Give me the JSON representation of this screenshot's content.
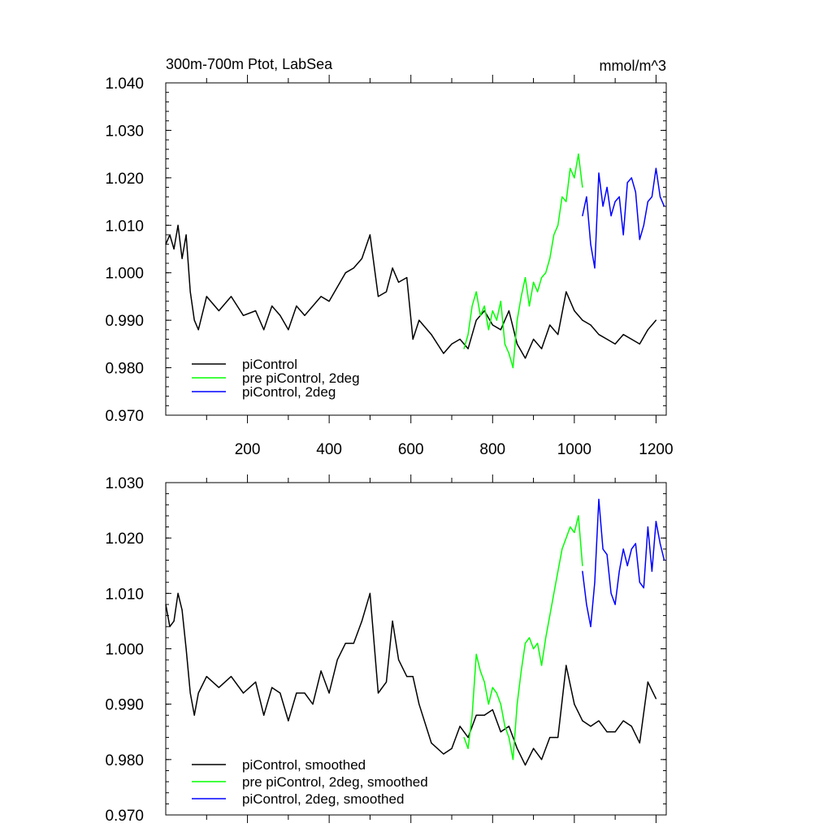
{
  "chart_data": [
    {
      "type": "line",
      "title": "300m-700m Ptot, LabSea",
      "units": "mmol/m^3",
      "xlabel": "",
      "ylabel": "",
      "xlim": [
        0,
        1225
      ],
      "ylim": [
        0.97,
        1.04
      ],
      "xticks": [
        "200",
        "400",
        "600",
        "800",
        "1000",
        "1200"
      ],
      "yticks": [
        "0.970",
        "0.980",
        "0.990",
        "1.000",
        "1.010",
        "1.020",
        "1.030",
        "1.040"
      ],
      "legend_position": "bottom-left",
      "series": [
        {
          "name": "piControl",
          "color": "#000000",
          "x": [
            0,
            10,
            20,
            30,
            40,
            50,
            60,
            70,
            80,
            100,
            130,
            160,
            190,
            220,
            240,
            260,
            280,
            300,
            320,
            340,
            360,
            380,
            400,
            420,
            440,
            460,
            480,
            500,
            520,
            540,
            555,
            570,
            590,
            605,
            620,
            650,
            680,
            700,
            720,
            740,
            760,
            780,
            800,
            820,
            840,
            860,
            880,
            900,
            920,
            940,
            960,
            980,
            1000,
            1020,
            1040,
            1060,
            1080,
            1100,
            1120,
            1140,
            1160,
            1180,
            1200
          ],
          "y": [
            1.006,
            1.008,
            1.005,
            1.01,
            1.003,
            1.008,
            0.996,
            0.99,
            0.988,
            0.995,
            0.992,
            0.995,
            0.991,
            0.992,
            0.988,
            0.993,
            0.991,
            0.988,
            0.993,
            0.991,
            0.993,
            0.995,
            0.994,
            0.997,
            1.0,
            1.001,
            1.003,
            1.008,
            0.995,
            0.996,
            1.001,
            0.998,
            0.999,
            0.986,
            0.99,
            0.987,
            0.983,
            0.985,
            0.986,
            0.984,
            0.99,
            0.992,
            0.989,
            0.988,
            0.992,
            0.985,
            0.982,
            0.986,
            0.984,
            0.989,
            0.987,
            0.996,
            0.992,
            0.99,
            0.989,
            0.987,
            0.986,
            0.985,
            0.987,
            0.986,
            0.985,
            0.988,
            0.99
          ]
        },
        {
          "name": "pre piControl, 2deg",
          "color": "#00ff00",
          "x": [
            730,
            740,
            750,
            760,
            770,
            780,
            790,
            800,
            810,
            820,
            830,
            840,
            850,
            860,
            870,
            880,
            890,
            900,
            910,
            920,
            930,
            940,
            950,
            960,
            970,
            980,
            990,
            1000,
            1010,
            1020
          ],
          "y": [
            0.984,
            0.987,
            0.993,
            0.996,
            0.991,
            0.993,
            0.988,
            0.992,
            0.99,
            0.994,
            0.985,
            0.983,
            0.98,
            0.99,
            0.995,
            0.999,
            0.993,
            0.998,
            0.996,
            0.999,
            1.0,
            1.003,
            1.008,
            1.01,
            1.016,
            1.015,
            1.022,
            1.02,
            1.025,
            1.018
          ]
        },
        {
          "name": "piControl, 2deg",
          "color": "#0000ff",
          "x": [
            1020,
            1030,
            1040,
            1050,
            1060,
            1070,
            1080,
            1090,
            1100,
            1110,
            1120,
            1130,
            1140,
            1150,
            1160,
            1170,
            1180,
            1190,
            1200,
            1210,
            1220
          ],
          "y": [
            1.012,
            1.016,
            1.006,
            1.001,
            1.021,
            1.014,
            1.018,
            1.012,
            1.015,
            1.016,
            1.008,
            1.019,
            1.02,
            1.017,
            1.007,
            1.01,
            1.015,
            1.016,
            1.022,
            1.016,
            1.014
          ]
        }
      ]
    },
    {
      "type": "line",
      "title": "",
      "xlabel": "",
      "ylabel": "",
      "xlim": [
        0,
        1225
      ],
      "ylim": [
        0.97,
        1.03
      ],
      "xticks": [],
      "yticks": [
        "0.970",
        "0.980",
        "0.990",
        "1.000",
        "1.010",
        "1.020",
        "1.030"
      ],
      "legend_position": "bottom-left",
      "series": [
        {
          "name": "piControl, smoothed",
          "color": "#000000",
          "x": [
            0,
            10,
            20,
            30,
            40,
            50,
            60,
            70,
            80,
            100,
            130,
            160,
            190,
            220,
            240,
            260,
            280,
            300,
            320,
            340,
            360,
            380,
            400,
            420,
            440,
            460,
            480,
            500,
            520,
            540,
            555,
            570,
            590,
            605,
            620,
            650,
            680,
            700,
            720,
            740,
            760,
            780,
            800,
            820,
            840,
            860,
            880,
            900,
            920,
            940,
            960,
            980,
            1000,
            1020,
            1040,
            1060,
            1080,
            1100,
            1120,
            1140,
            1160,
            1180,
            1200
          ],
          "y": [
            1.008,
            1.004,
            1.005,
            1.01,
            1.007,
            1.0,
            0.992,
            0.988,
            0.992,
            0.995,
            0.993,
            0.995,
            0.992,
            0.994,
            0.988,
            0.993,
            0.992,
            0.987,
            0.992,
            0.992,
            0.99,
            0.996,
            0.992,
            0.998,
            1.001,
            1.001,
            1.005,
            1.01,
            0.992,
            0.994,
            1.005,
            0.998,
            0.995,
            0.995,
            0.99,
            0.983,
            0.981,
            0.982,
            0.986,
            0.984,
            0.988,
            0.988,
            0.989,
            0.985,
            0.986,
            0.982,
            0.979,
            0.982,
            0.98,
            0.984,
            0.984,
            0.997,
            0.99,
            0.987,
            0.986,
            0.987,
            0.985,
            0.985,
            0.987,
            0.986,
            0.983,
            0.994,
            0.991
          ]
        },
        {
          "name": "pre piControl, 2deg, smoothed",
          "color": "#00ff00",
          "x": [
            730,
            740,
            750,
            760,
            770,
            780,
            790,
            800,
            810,
            820,
            830,
            840,
            850,
            860,
            870,
            880,
            890,
            900,
            910,
            920,
            930,
            940,
            950,
            960,
            970,
            980,
            990,
            1000,
            1010,
            1020
          ],
          "y": [
            0.984,
            0.982,
            0.988,
            0.999,
            0.996,
            0.994,
            0.99,
            0.993,
            0.992,
            0.99,
            0.986,
            0.984,
            0.98,
            0.99,
            0.996,
            1.001,
            1.002,
            1.0,
            1.001,
            0.997,
            1.002,
            1.006,
            1.01,
            1.014,
            1.018,
            1.02,
            1.022,
            1.021,
            1.024,
            1.015
          ]
        },
        {
          "name": "piControl, 2deg, smoothed",
          "color": "#0000ff",
          "x": [
            1020,
            1030,
            1040,
            1050,
            1060,
            1070,
            1080,
            1090,
            1100,
            1110,
            1120,
            1130,
            1140,
            1150,
            1160,
            1170,
            1180,
            1190,
            1200,
            1210,
            1220
          ],
          "y": [
            1.014,
            1.008,
            1.004,
            1.012,
            1.027,
            1.018,
            1.017,
            1.01,
            1.008,
            1.014,
            1.018,
            1.015,
            1.018,
            1.019,
            1.012,
            1.011,
            1.022,
            1.014,
            1.023,
            1.019,
            1.016
          ]
        }
      ]
    }
  ]
}
